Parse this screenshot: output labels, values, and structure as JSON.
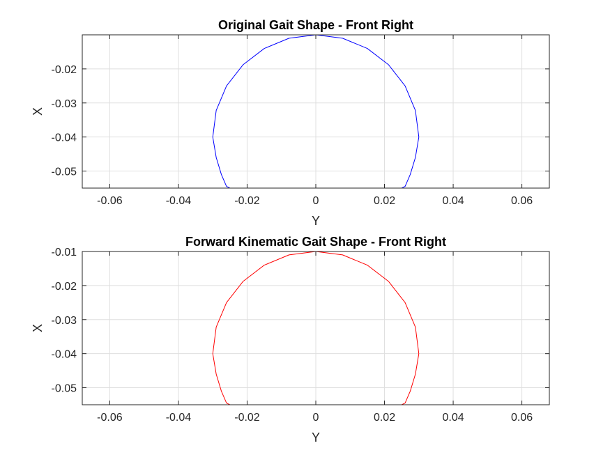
{
  "chart_data": [
    {
      "type": "line",
      "title": "Original Gait Shape - Front Right",
      "xlabel": "Y",
      "ylabel": "X",
      "xlim": [
        -0.068,
        0.068
      ],
      "ylim": [
        -0.055,
        -0.01
      ],
      "xticks": [
        -0.06,
        -0.04,
        -0.02,
        0,
        0.02,
        0.04,
        0.06
      ],
      "xtick_labels": [
        "-0.06",
        "-0.04",
        "-0.02",
        "0",
        "0.02",
        "0.04",
        "0.06"
      ],
      "yticks": [
        -0.05,
        -0.04,
        -0.03,
        -0.02
      ],
      "ytick_labels": [
        "-0.05",
        "-0.04",
        "-0.03",
        "-0.02"
      ],
      "grid": true,
      "series": [
        {
          "color": "#0000ff",
          "x": [
            0,
            0.0078,
            0.015,
            0.0212,
            0.026,
            0.029,
            0.03,
            0.029,
            0.0275,
            0.026,
            0.025,
            0.015,
            0,
            -0.015,
            -0.025,
            -0.026,
            -0.0275,
            -0.029,
            -0.03,
            -0.029,
            -0.026,
            -0.0212,
            -0.015,
            -0.0078,
            0
          ],
          "y": [
            -0.01,
            -0.011,
            -0.014,
            -0.0188,
            -0.025,
            -0.0322,
            -0.04,
            -0.046,
            -0.051,
            -0.0545,
            -0.055,
            -0.055,
            -0.055,
            -0.055,
            -0.055,
            -0.0545,
            -0.051,
            -0.046,
            -0.04,
            -0.0322,
            -0.025,
            -0.0188,
            -0.014,
            -0.011,
            -0.01
          ]
        }
      ]
    },
    {
      "type": "line",
      "title": "Forward Kinematic Gait Shape - Front Right",
      "xlabel": "Y",
      "ylabel": "X",
      "xlim": [
        -0.068,
        0.068
      ],
      "ylim": [
        -0.055,
        -0.01
      ],
      "xticks": [
        -0.06,
        -0.04,
        -0.02,
        0,
        0.02,
        0.04,
        0.06
      ],
      "xtick_labels": [
        "-0.06",
        "-0.04",
        "-0.02",
        "0",
        "0.02",
        "0.04",
        "0.06"
      ],
      "yticks": [
        -0.05,
        -0.04,
        -0.03,
        -0.02,
        -0.01
      ],
      "ytick_labels": [
        "-0.05",
        "-0.04",
        "-0.03",
        "-0.02",
        "-0.01"
      ],
      "grid": true,
      "series": [
        {
          "color": "#ff0000",
          "x": [
            0,
            0.0078,
            0.015,
            0.0212,
            0.026,
            0.029,
            0.03,
            0.029,
            0.0275,
            0.026,
            0.025,
            0.015,
            0,
            -0.015,
            -0.025,
            -0.026,
            -0.0275,
            -0.029,
            -0.03,
            -0.029,
            -0.026,
            -0.0212,
            -0.015,
            -0.0078,
            0
          ],
          "y": [
            -0.01,
            -0.011,
            -0.014,
            -0.0188,
            -0.025,
            -0.0322,
            -0.04,
            -0.046,
            -0.051,
            -0.0545,
            -0.055,
            -0.055,
            -0.055,
            -0.055,
            -0.055,
            -0.0545,
            -0.051,
            -0.046,
            -0.04,
            -0.0322,
            -0.025,
            -0.0188,
            -0.014,
            -0.011,
            -0.01
          ]
        }
      ]
    }
  ]
}
